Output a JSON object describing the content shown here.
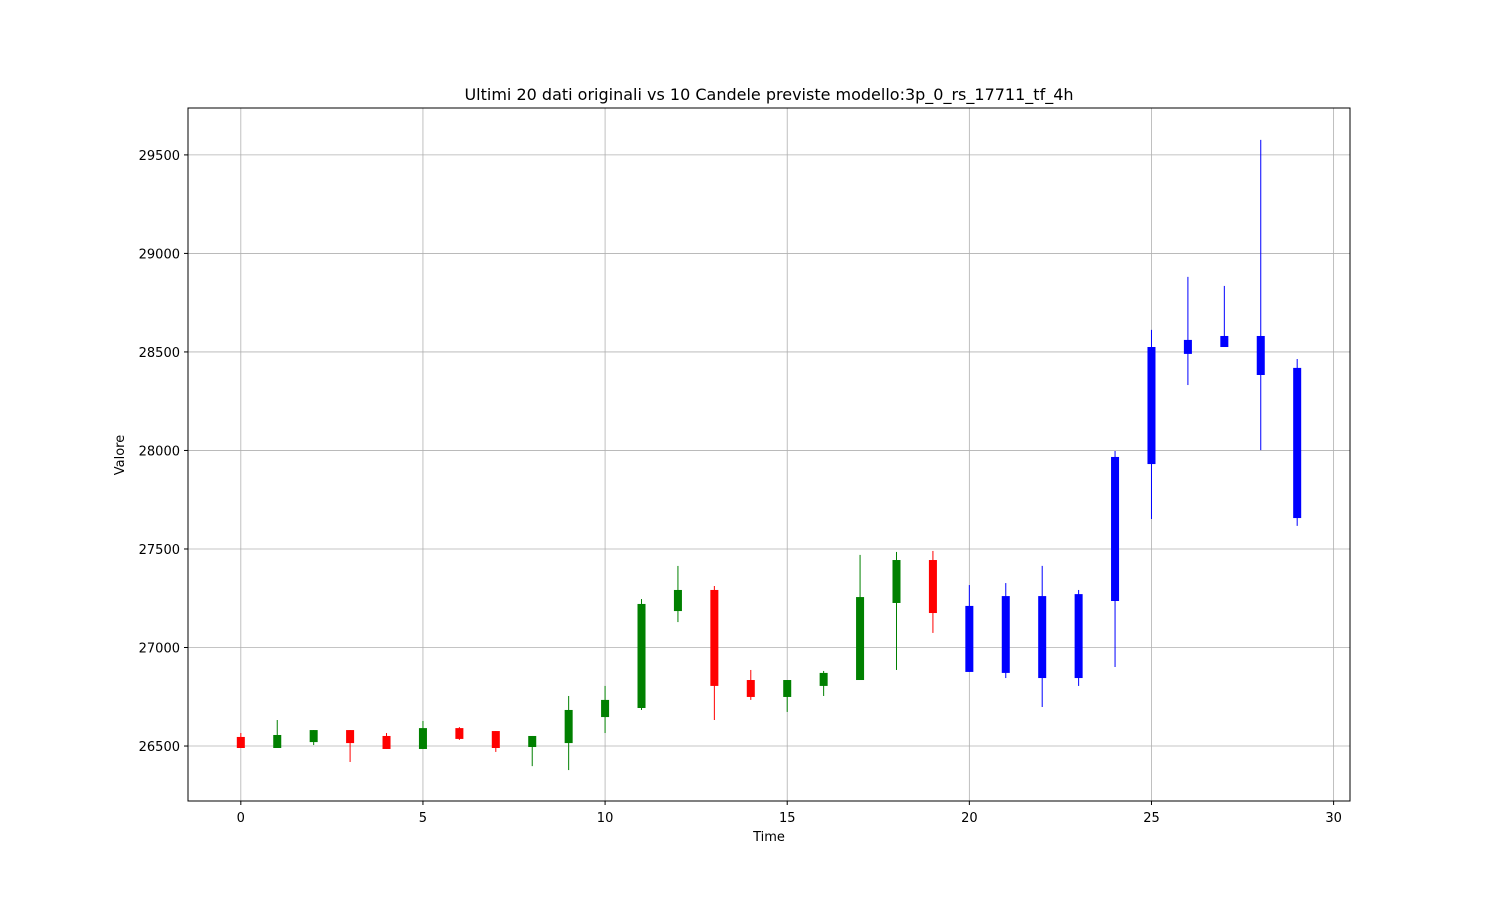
{
  "chart_data": {
    "type": "candlestick",
    "title": "Ultimi 20 dati originali vs 10 Candele previste modello:3p_0_rs_17711_tf_4h",
    "x_label": "Time",
    "y_label": "Valore",
    "x": [
      0,
      1,
      2,
      3,
      4,
      5,
      6,
      7,
      8,
      9,
      10,
      11,
      12,
      13,
      14,
      15,
      16,
      17,
      18,
      19,
      20,
      21,
      22,
      23,
      24,
      25,
      26,
      27,
      28,
      29
    ],
    "open": [
      26546,
      26490,
      26520,
      26581,
      26551,
      26485,
      26591,
      26576,
      26495,
      26515,
      26647,
      26693,
      27185,
      27292,
      26835,
      26749,
      26805,
      26835,
      27226,
      27444,
      27211,
      27261,
      27261,
      27271,
      27967,
      28525,
      28561,
      28581,
      28581,
      28419
    ],
    "high": [
      26566,
      26632,
      26581,
      26581,
      26566,
      26627,
      26596,
      26576,
      26551,
      26754,
      26805,
      27246,
      27414,
      27312,
      26886,
      26835,
      26881,
      27470,
      27485,
      27490,
      27317,
      27327,
      27414,
      27292,
      27997,
      28612,
      28881,
      28835,
      29576,
      28464
    ],
    "low": [
      26490,
      26490,
      26505,
      26419,
      26485,
      26485,
      26531,
      26470,
      26398,
      26378,
      26566,
      26683,
      27129,
      26632,
      26734,
      26673,
      26754,
      26835,
      26886,
      27074,
      26876,
      26845,
      26698,
      26805,
      26901,
      27652,
      28332,
      28525,
      28002,
      27617
    ],
    "close": [
      26490,
      26556,
      26581,
      26515,
      26485,
      26591,
      26536,
      26490,
      26551,
      26683,
      26734,
      27221,
      27292,
      26805,
      26749,
      26835,
      26871,
      27256,
      27444,
      27175,
      26876,
      26871,
      26845,
      26845,
      27236,
      27931,
      28490,
      28525,
      28383,
      27657
    ],
    "colors": [
      "red",
      "green",
      "green",
      "red",
      "red",
      "green",
      "red",
      "red",
      "green",
      "green",
      "green",
      "green",
      "green",
      "red",
      "red",
      "green",
      "green",
      "green",
      "green",
      "red",
      "blue",
      "blue",
      "blue",
      "blue",
      "blue",
      "blue",
      "blue",
      "blue",
      "blue",
      "blue"
    ],
    "xlim": [
      -1.45,
      30.45
    ],
    "ylim": [
      26221,
      29738
    ],
    "xticks": [
      0,
      5,
      10,
      15,
      20,
      25,
      30
    ],
    "yticks": [
      26500,
      27000,
      27500,
      28000,
      28500,
      29000,
      29500
    ],
    "grid": true
  }
}
